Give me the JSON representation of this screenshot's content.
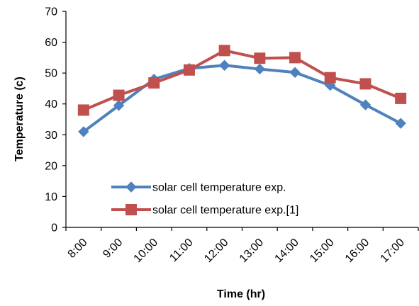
{
  "chart_data": {
    "type": "line",
    "categories": [
      "8:00",
      "9:00",
      "10:00",
      "11:00",
      "12:00",
      "13:00",
      "14:00",
      "15:00",
      "16:00",
      "17:00"
    ],
    "series": [
      {
        "name": "solar cell temperature exp.",
        "values": [
          31,
          39.5,
          48,
          51.5,
          52.5,
          51.3,
          50.2,
          46,
          39.7,
          33.7
        ],
        "color": "#4f81bd",
        "marker": "diamond"
      },
      {
        "name": "solar cell temperature exp.[1]",
        "values": [
          38,
          42.8,
          46.8,
          51,
          57.3,
          54.8,
          55,
          48.5,
          46.5,
          41.8
        ],
        "color": "#c0504d",
        "marker": "square"
      }
    ],
    "xlabel": "Time (hr)",
    "ylabel": "Temperature (c)",
    "ylim": [
      0,
      70
    ],
    "yticks": [
      0,
      10,
      20,
      30,
      40,
      50,
      60,
      70
    ],
    "grid": false,
    "legend_position": "bottom-center"
  }
}
